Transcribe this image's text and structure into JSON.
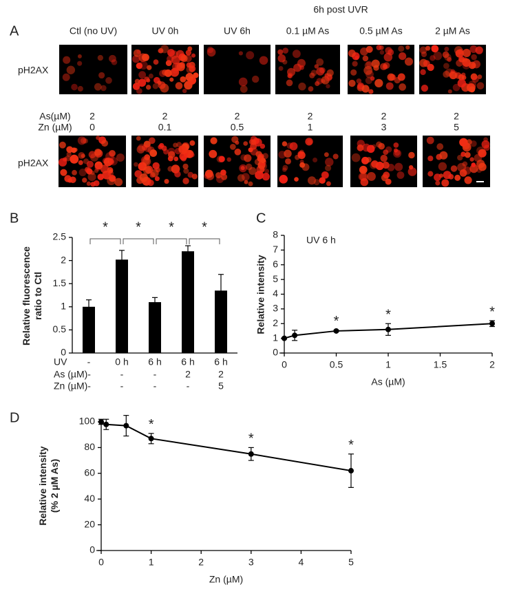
{
  "panel_a": {
    "label": "A",
    "header": "6h post UVR",
    "row1": {
      "labels": [
        "Ctl (no UV)",
        "UV  0h",
        "UV 6h",
        "0.1 µM As",
        "0.5 µM As",
        "2 µM As"
      ],
      "stain": "pH2AX"
    },
    "row2": {
      "as_label": "As(µM)",
      "as_values": [
        2,
        2,
        2,
        2,
        2,
        2
      ],
      "zn_label": "Zn (µM)",
      "zn_values": [
        0,
        0.1,
        0.5,
        1,
        3,
        5
      ],
      "stain": "pH2AX"
    }
  },
  "chart_data": [
    {
      "panel_label": "B",
      "type": "bar",
      "ylabel": [
        "Relative fluorescence",
        "ratio to Ctl"
      ],
      "categories_label": "UV",
      "categories": [
        "-",
        "0 h",
        "6 h",
        "6 h",
        "6 h"
      ],
      "extra_rows": [
        {
          "label": "As (µM)-",
          "cells": [
            null,
            "-",
            "-",
            "2",
            "2"
          ]
        },
        {
          "label": "Zn (µM)-",
          "cells": [
            null,
            "-",
            "-",
            "-",
            "5"
          ]
        }
      ],
      "values": [
        1,
        2.02,
        1.1,
        2.2,
        1.35
      ],
      "errors": [
        0.15,
        0.2,
        0.1,
        0.12,
        0.35
      ],
      "color": "#000000",
      "ylim": [
        0,
        2.5
      ],
      "yticks": [
        0,
        0.5,
        1,
        1.5,
        2,
        2.5
      ],
      "annotations": [
        "*",
        "*",
        "*",
        "*"
      ]
    },
    {
      "panel_label": "C",
      "type": "line",
      "title": "UV 6 h",
      "xlabel": "As (µM)",
      "ylabel": [
        "Relative intensity"
      ],
      "x": [
        0,
        0.1,
        0.5,
        1,
        2
      ],
      "series": [
        {
          "color": "#000000",
          "values": [
            1,
            1.2,
            1.5,
            1.6,
            2
          ],
          "errors": [
            0.05,
            0.35,
            0.05,
            0.4,
            0.2
          ],
          "annotations": [
            null,
            null,
            "*",
            "*",
            "*"
          ]
        }
      ],
      "xlim": [
        0,
        2
      ],
      "xticks": [
        0,
        0.5,
        1,
        1.5,
        2
      ],
      "ylim": [
        0,
        8
      ],
      "yticks": [
        0,
        1,
        2,
        3,
        4,
        5,
        6,
        7,
        8
      ]
    },
    {
      "panel_label": "D",
      "type": "line",
      "xlabel": "Zn (µM)",
      "ylabel": [
        "Relative intensity",
        "(% 2 µM As)"
      ],
      "x": [
        0,
        0.1,
        0.5,
        1,
        3,
        5
      ],
      "series": [
        {
          "color": "#000000",
          "values": [
            100,
            98,
            97,
            87,
            75,
            62
          ],
          "errors": [
            2,
            4,
            8,
            4,
            5,
            13
          ],
          "annotations": [
            null,
            null,
            null,
            "*",
            "*",
            "*"
          ]
        }
      ],
      "xlim": [
        0,
        5
      ],
      "xticks": [
        0,
        1,
        2,
        3,
        4,
        5
      ],
      "ylim": [
        0,
        100
      ],
      "yticks": [
        0,
        20,
        40,
        60,
        80,
        100
      ]
    }
  ]
}
